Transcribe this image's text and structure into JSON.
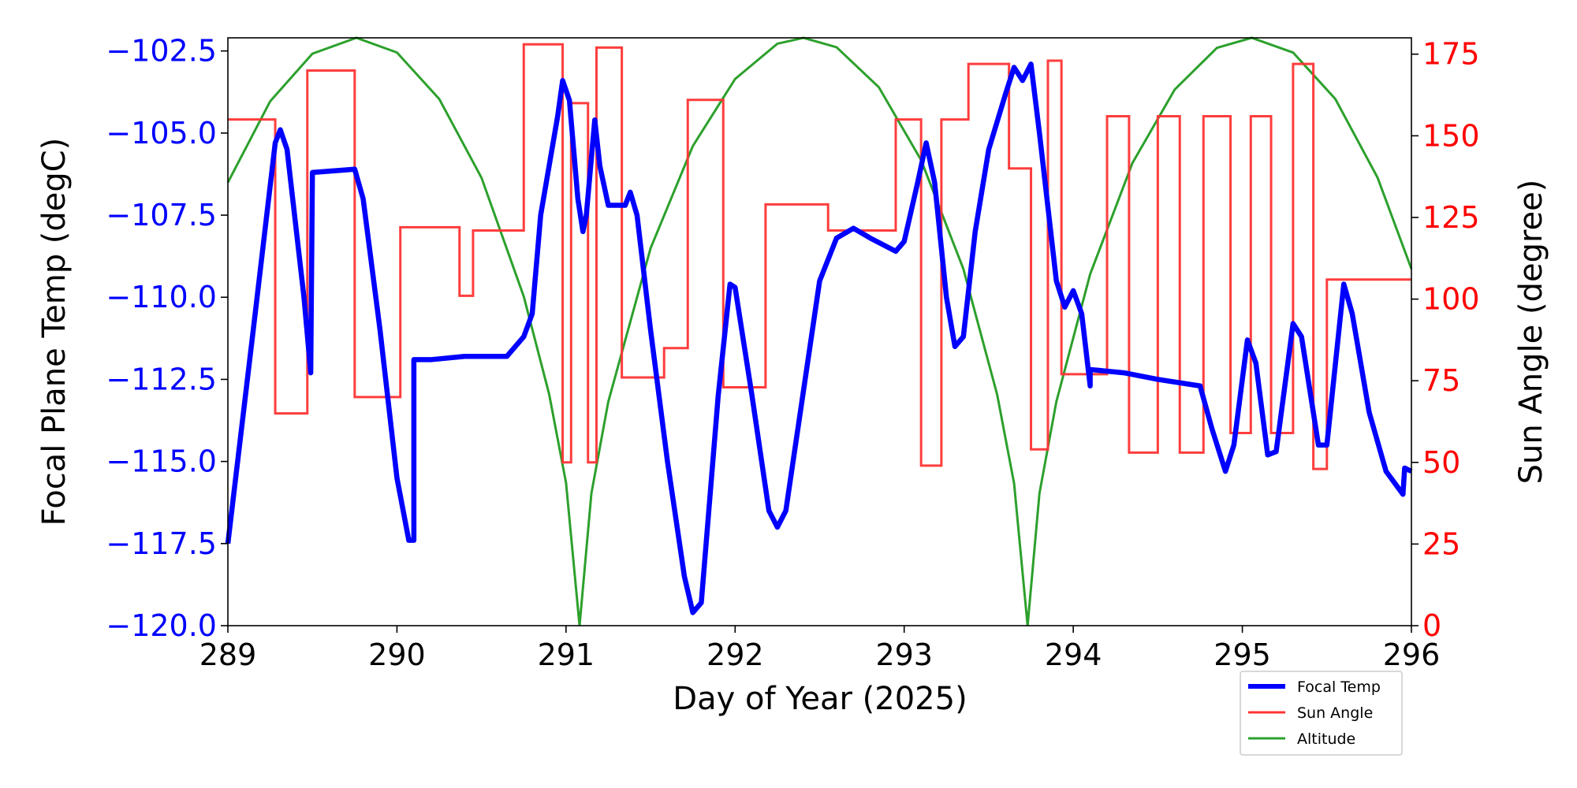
{
  "chart_data": {
    "type": "line",
    "xlabel": "Day of Year (2025)",
    "ylabel_left": "Focal Plane Temp (degC)",
    "ylabel_right": "Sun Angle (degree)",
    "xlim": [
      289,
      296
    ],
    "ylim_left": [
      -120.0,
      -102.1
    ],
    "ylim_right": [
      0,
      180
    ],
    "altitude_range": [
      0,
      1
    ],
    "x_ticks": [
      "289",
      "290",
      "291",
      "292",
      "293",
      "294",
      "295",
      "296"
    ],
    "x_tick_values": [
      289,
      290,
      291,
      292,
      293,
      294,
      295,
      296
    ],
    "y_left_ticks": [
      "−102.5",
      "−105.0",
      "−107.5",
      "−110.0",
      "−112.5",
      "−115.0",
      "−117.5",
      "−120.0"
    ],
    "y_left_tick_values": [
      -102.5,
      -105.0,
      -107.5,
      -110.0,
      -112.5,
      -115.0,
      -117.5,
      -120.0
    ],
    "y_right_ticks": [
      "175",
      "150",
      "125",
      "100",
      "75",
      "50",
      "25",
      "0"
    ],
    "y_right_tick_values": [
      175,
      150,
      125,
      100,
      75,
      50,
      25,
      0
    ],
    "legend": {
      "placement": "lower-right outside",
      "entries": [
        "Focal Temp",
        "Sun Angle",
        "Altitude"
      ]
    },
    "colors": {
      "focal": "#0000ff",
      "sun": "#ff3333",
      "altitude": "#2ca02c",
      "left_axis": "#0000ff",
      "right_axis": "#ff0000"
    },
    "series": [
      {
        "name": "Focal Temp",
        "axis": "left",
        "points": [
          [
            289.0,
            -117.5
          ],
          [
            289.15,
            -111
          ],
          [
            289.28,
            -105.3
          ],
          [
            289.31,
            -104.9
          ],
          [
            289.35,
            -105.5
          ],
          [
            289.45,
            -110
          ],
          [
            289.49,
            -112.3
          ],
          [
            289.5,
            -106.2
          ],
          [
            289.75,
            -106.1
          ],
          [
            289.8,
            -107
          ],
          [
            289.9,
            -111
          ],
          [
            290.0,
            -115.5
          ],
          [
            290.07,
            -117.4
          ],
          [
            290.1,
            -117.4
          ],
          [
            290.1,
            -111.9
          ],
          [
            290.2,
            -111.9
          ],
          [
            290.4,
            -111.8
          ],
          [
            290.65,
            -111.8
          ],
          [
            290.75,
            -111.2
          ],
          [
            290.8,
            -110.5
          ],
          [
            290.85,
            -107.5
          ],
          [
            290.95,
            -104.5
          ],
          [
            290.98,
            -103.4
          ],
          [
            291.02,
            -104
          ],
          [
            291.07,
            -107
          ],
          [
            291.1,
            -108
          ],
          [
            291.12,
            -107.5
          ],
          [
            291.17,
            -104.6
          ],
          [
            291.2,
            -106
          ],
          [
            291.25,
            -107.2
          ],
          [
            291.35,
            -107.2
          ],
          [
            291.38,
            -106.8
          ],
          [
            291.42,
            -107.5
          ],
          [
            291.5,
            -111
          ],
          [
            291.6,
            -115
          ],
          [
            291.7,
            -118.5
          ],
          [
            291.75,
            -119.6
          ],
          [
            291.8,
            -119.3
          ],
          [
            291.9,
            -113
          ],
          [
            291.97,
            -109.6
          ],
          [
            292.0,
            -109.7
          ],
          [
            292.1,
            -113
          ],
          [
            292.2,
            -116.5
          ],
          [
            292.25,
            -117
          ],
          [
            292.3,
            -116.5
          ],
          [
            292.4,
            -113
          ],
          [
            292.5,
            -109.5
          ],
          [
            292.6,
            -108.2
          ],
          [
            292.7,
            -107.9
          ],
          [
            292.8,
            -108.2
          ],
          [
            292.95,
            -108.6
          ],
          [
            293.0,
            -108.3
          ],
          [
            293.08,
            -106.5
          ],
          [
            293.13,
            -105.3
          ],
          [
            293.18,
            -106.5
          ],
          [
            293.25,
            -110
          ],
          [
            293.3,
            -111.5
          ],
          [
            293.35,
            -111.2
          ],
          [
            293.42,
            -108
          ],
          [
            293.5,
            -105.5
          ],
          [
            293.6,
            -103.8
          ],
          [
            293.65,
            -103
          ],
          [
            293.7,
            -103.4
          ],
          [
            293.75,
            -102.9
          ],
          [
            293.8,
            -105
          ],
          [
            293.9,
            -109.5
          ],
          [
            293.95,
            -110.3
          ],
          [
            294.0,
            -109.8
          ],
          [
            294.05,
            -110.5
          ],
          [
            294.1,
            -112.7
          ],
          [
            294.1,
            -112.2
          ],
          [
            294.3,
            -112.3
          ],
          [
            294.5,
            -112.5
          ],
          [
            294.75,
            -112.7
          ],
          [
            294.82,
            -114
          ],
          [
            294.9,
            -115.3
          ],
          [
            294.95,
            -114.5
          ],
          [
            295.03,
            -111.3
          ],
          [
            295.08,
            -112
          ],
          [
            295.15,
            -114.8
          ],
          [
            295.2,
            -114.7
          ],
          [
            295.3,
            -110.8
          ],
          [
            295.35,
            -111.2
          ],
          [
            295.45,
            -114.5
          ],
          [
            295.5,
            -114.5
          ],
          [
            295.6,
            -109.6
          ],
          [
            295.65,
            -110.5
          ],
          [
            295.75,
            -113.5
          ],
          [
            295.85,
            -115.3
          ],
          [
            295.95,
            -116
          ],
          [
            295.96,
            -115.2
          ],
          [
            296.0,
            -115.3
          ]
        ]
      },
      {
        "name": "Sun Angle",
        "axis": "right",
        "steps": [
          [
            289.0,
            155
          ],
          [
            289.28,
            65
          ],
          [
            289.47,
            170
          ],
          [
            289.75,
            70
          ],
          [
            290.02,
            122
          ],
          [
            290.37,
            101
          ],
          [
            290.45,
            121
          ],
          [
            290.75,
            178
          ],
          [
            290.98,
            50
          ],
          [
            291.03,
            160
          ],
          [
            291.13,
            50
          ],
          [
            291.18,
            177
          ],
          [
            291.33,
            76
          ],
          [
            291.58,
            85
          ],
          [
            291.72,
            161
          ],
          [
            291.93,
            73
          ],
          [
            292.18,
            129
          ],
          [
            292.55,
            121
          ],
          [
            292.95,
            155
          ],
          [
            293.1,
            49
          ],
          [
            293.22,
            155
          ],
          [
            293.38,
            172
          ],
          [
            293.62,
            140
          ],
          [
            293.75,
            54
          ],
          [
            293.85,
            173
          ],
          [
            293.93,
            77
          ],
          [
            294.2,
            156
          ],
          [
            294.33,
            53
          ],
          [
            294.5,
            156
          ],
          [
            294.63,
            53
          ],
          [
            294.77,
            156
          ],
          [
            294.93,
            59
          ],
          [
            295.05,
            156
          ],
          [
            295.17,
            59
          ],
          [
            295.3,
            172
          ],
          [
            295.42,
            48
          ],
          [
            295.5,
            106
          ],
          [
            296.0,
            106
          ]
        ]
      },
      {
        "name": "Altitude",
        "axis": "none",
        "points": [
          [
            289.0,
            0.754
          ],
          [
            289.25,
            0.892
          ],
          [
            289.5,
            0.973
          ],
          [
            289.76,
            1.0
          ],
          [
            290.0,
            0.975
          ],
          [
            290.25,
            0.896
          ],
          [
            290.5,
            0.762
          ],
          [
            290.75,
            0.56
          ],
          [
            290.9,
            0.394
          ],
          [
            291.0,
            0.243
          ],
          [
            291.08,
            0
          ],
          [
            291.15,
            0.225
          ],
          [
            291.25,
            0.381
          ],
          [
            291.5,
            0.642
          ],
          [
            291.75,
            0.816
          ],
          [
            292.0,
            0.93
          ],
          [
            292.25,
            0.99
          ],
          [
            292.405,
            1.0
          ],
          [
            292.6,
            0.984
          ],
          [
            292.85,
            0.916
          ],
          [
            293.1,
            0.792
          ],
          [
            293.35,
            0.607
          ],
          [
            293.55,
            0.393
          ],
          [
            293.65,
            0.242
          ],
          [
            293.73,
            0
          ],
          [
            293.8,
            0.225
          ],
          [
            293.9,
            0.381
          ],
          [
            294.1,
            0.598
          ],
          [
            294.35,
            0.787
          ],
          [
            294.6,
            0.912
          ],
          [
            294.85,
            0.983
          ],
          [
            295.055,
            1.0
          ],
          [
            295.3,
            0.975
          ],
          [
            295.55,
            0.896
          ],
          [
            295.8,
            0.762
          ],
          [
            296.0,
            0.607
          ]
        ]
      }
    ]
  }
}
